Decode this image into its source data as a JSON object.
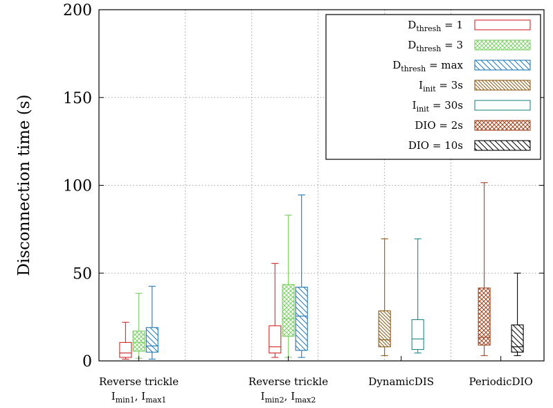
{
  "chart_data": {
    "type": "boxplot",
    "ylabel": "Disconnection time (s)",
    "ylim": [
      0,
      200
    ],
    "yticks": [
      0,
      50,
      100,
      150,
      200
    ],
    "grid": true,
    "legend_position": "top-right",
    "categories": [
      {
        "line1": "Reverse trickle",
        "line2": {
          "a": "I",
          "a_sub": "min1",
          "sep": ", I",
          "b_sub": "max1"
        }
      },
      {
        "line1": "Reverse trickle",
        "line2": {
          "a": "I",
          "a_sub": "min2",
          "sep": ", I",
          "b_sub": "max2"
        }
      },
      {
        "line1": "DynamicDIS",
        "line2": null
      },
      {
        "line1": "PeriodicDIO",
        "line2": null
      }
    ],
    "series": [
      {
        "name_main": "D",
        "name_sub": "thresh",
        "name_rest": " = 1",
        "color": "#d62728",
        "pattern": "none"
      },
      {
        "name_main": "D",
        "name_sub": "thresh",
        "name_rest": " = 3",
        "color": "#7fcf6a",
        "pattern": "crosshatch"
      },
      {
        "name_main": "D",
        "name_sub": "thresh",
        "name_rest": " = max",
        "color": "#1f77b4",
        "pattern": "diag-down"
      },
      {
        "name_main": "I",
        "name_sub": "init",
        "name_rest": " = 3s",
        "color": "#8c5a14",
        "pattern": "diag-dense"
      },
      {
        "name_main": "I",
        "name_sub": "init",
        "name_rest": " = 30s",
        "color": "#1f8a86",
        "pattern": "none"
      },
      {
        "name_main": "DIO = 2s",
        "name_sub": "",
        "name_rest": "",
        "color": "#a0421c",
        "pattern": "crosshatch"
      },
      {
        "name_main": "DIO = 10s",
        "name_sub": "",
        "name_rest": "",
        "color": "#000000",
        "pattern": "diag-down"
      }
    ],
    "boxes": [
      {
        "category": 0,
        "series": 0,
        "x": 0.6,
        "min": 1,
        "q1": 2,
        "median": 4.5,
        "q3": 10.5,
        "max": 22
      },
      {
        "category": 0,
        "series": 1,
        "x": 0.8,
        "min": 1.5,
        "q1": 5.5,
        "median": 10.5,
        "q3": 17,
        "max": 38.5
      },
      {
        "category": 0,
        "series": 2,
        "x": 1.0,
        "min": 1,
        "q1": 5,
        "median": 8.5,
        "q3": 19,
        "max": 42.5
      },
      {
        "category": 1,
        "series": 0,
        "x": 2.85,
        "min": 2,
        "q1": 4.5,
        "median": 8,
        "q3": 20,
        "max": 55.5
      },
      {
        "category": 1,
        "series": 1,
        "x": 3.05,
        "min": 2,
        "q1": 14,
        "median": 24,
        "q3": 43.5,
        "max": 83
      },
      {
        "category": 1,
        "series": 2,
        "x": 3.25,
        "min": 2,
        "q1": 6,
        "median": 25.5,
        "q3": 42,
        "max": 94.5
      },
      {
        "category": 2,
        "series": 3,
        "x": 4.5,
        "min": 3,
        "q1": 8,
        "median": 12,
        "q3": 28.5,
        "max": 69.5
      },
      {
        "category": 2,
        "series": 4,
        "x": 5.0,
        "min": 4.5,
        "q1": 6.5,
        "median": 12.5,
        "q3": 23.5,
        "max": 69.5
      },
      {
        "category": 3,
        "series": 5,
        "x": 6.0,
        "min": 3,
        "q1": 9,
        "median": 13.5,
        "q3": 41.5,
        "max": 101.5
      },
      {
        "category": 3,
        "series": 6,
        "x": 6.5,
        "min": 3,
        "q1": 5,
        "median": 8,
        "q3": 20.5,
        "max": 50
      }
    ],
    "category_positions": [
      0.8,
      3.05,
      4.75,
      6.25
    ],
    "xlim": [
      0.2,
      6.9
    ],
    "vertical_grid_at": [
      1.5,
      2.5,
      3.5,
      4.5,
      5.5
    ]
  }
}
